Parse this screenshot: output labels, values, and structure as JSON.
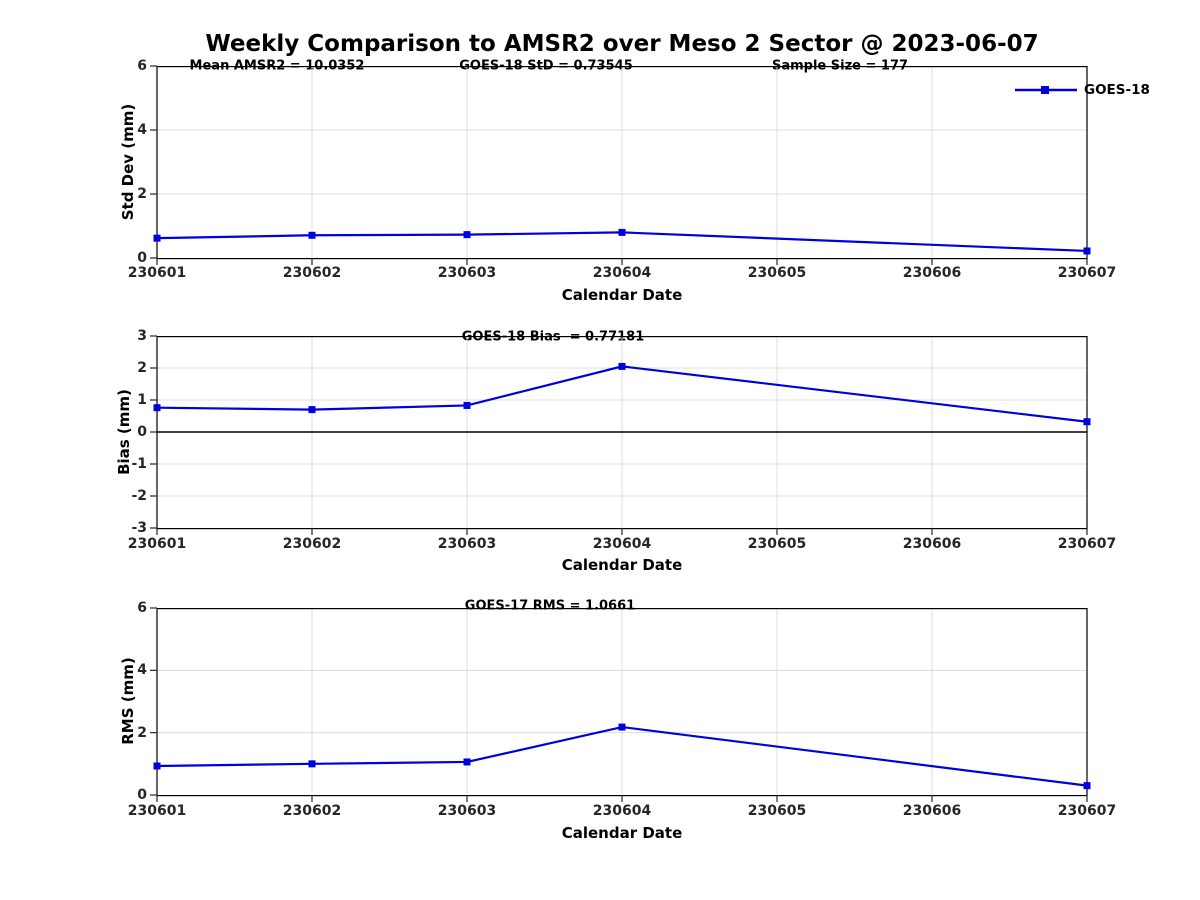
{
  "title": "Weekly Comparison to AMSR2 over Meso 2 Sector @ 2023-06-07",
  "legend": {
    "label": "GOES-18"
  },
  "colors": {
    "line": "#0000dd",
    "grid": "#dcdcdc",
    "axis": "#000000",
    "tick": "#262626",
    "zero_line": "#000000"
  },
  "chart_data": {
    "type": "line",
    "title": "Weekly Comparison to AMSR2 over Meso 2 Sector @ 2023-06-07",
    "categories": [
      "230601",
      "230602",
      "230603",
      "230604",
      "230605",
      "230606",
      "230607"
    ],
    "xlabel": "Calendar Date",
    "series_name": "GOES-18",
    "legend_position": "top-right",
    "grid": true,
    "subplots": [
      {
        "name": "std-dev",
        "ylabel": "Std Dev (mm)",
        "ylim": [
          0,
          6
        ],
        "yticks": [
          0,
          2,
          4,
          6
        ],
        "zero_line": false,
        "annotations": [
          "Mean AMSR2 = 10.0352",
          "GOES-18 StD = 0.73545",
          "Sample Size = 177"
        ],
        "x": [
          "230601",
          "230602",
          "230603",
          "230604",
          "230607"
        ],
        "values": [
          0.62,
          0.71,
          0.73,
          0.8,
          0.22
        ]
      },
      {
        "name": "bias",
        "ylabel": "Bias (mm)",
        "ylim": [
          -3,
          3
        ],
        "yticks": [
          -3,
          -2,
          -1,
          0,
          1,
          2,
          3
        ],
        "zero_line": true,
        "annotations": [
          "GOES-18 Bias  = 0.77181"
        ],
        "x": [
          "230601",
          "230602",
          "230603",
          "230604",
          "230607"
        ],
        "values": [
          0.76,
          0.7,
          0.83,
          2.05,
          0.32
        ]
      },
      {
        "name": "rms",
        "ylabel": "RMS (mm)",
        "ylim": [
          0,
          6
        ],
        "yticks": [
          0,
          2,
          4,
          6
        ],
        "zero_line": false,
        "annotations": [
          "GOES-17 RMS = 1.0661"
        ],
        "x": [
          "230601",
          "230602",
          "230603",
          "230604",
          "230607"
        ],
        "values": [
          0.93,
          1.0,
          1.06,
          2.18,
          0.3
        ]
      }
    ]
  }
}
